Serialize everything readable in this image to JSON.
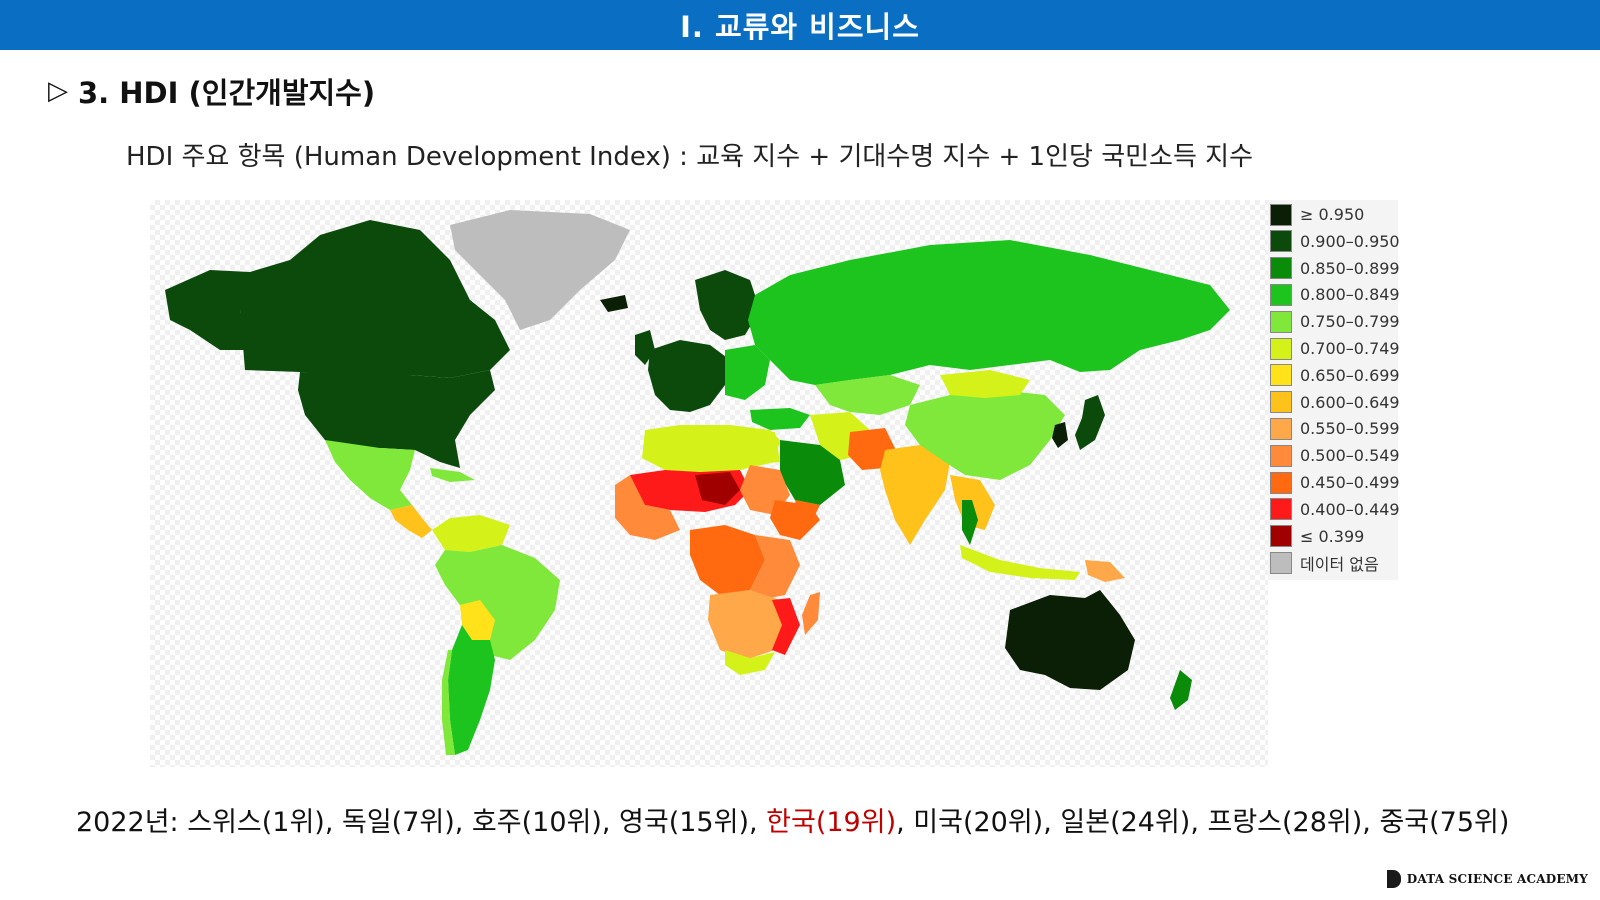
{
  "header": {
    "title": "I. 교류와 비즈니스"
  },
  "section": {
    "marker": "▷",
    "title": "3. HDI (인간개발지수)"
  },
  "subtitle": "HDI 주요 항목 (Human Development Index) : 교육 지수 + 기대수명 지수 + 1인당 국민소득 지수",
  "legend": [
    {
      "label": "≥ 0.950",
      "color": "#0a1f05"
    },
    {
      "label": "0.900–0.950",
      "color": "#0c4a0c"
    },
    {
      "label": "0.850–0.899",
      "color": "#0a8c0a"
    },
    {
      "label": "0.800–0.849",
      "color": "#1ec41e"
    },
    {
      "label": "0.750–0.799",
      "color": "#7fe83a"
    },
    {
      "label": "0.700–0.749",
      "color": "#d4f21a"
    },
    {
      "label": "0.650–0.699",
      "color": "#ffe21a"
    },
    {
      "label": "0.600–0.649",
      "color": "#ffc21a"
    },
    {
      "label": "0.550–0.599",
      "color": "#ffa84a"
    },
    {
      "label": "0.500–0.549",
      "color": "#ff8a3a"
    },
    {
      "label": "0.450–0.499",
      "color": "#ff6a10"
    },
    {
      "label": "0.400–0.449",
      "color": "#ff1a1a"
    },
    {
      "label": "≤ 0.399",
      "color": "#a00000"
    },
    {
      "label": "데이터 없음",
      "color": "#bdbdbd"
    }
  ],
  "footer": {
    "prefix": "2022년: 스위스(1위), 독일(7위), 호주(10위), 영국(15위), ",
    "highlight": "한국(19위)",
    "suffix": ", 미국(20위), 일본(24위), 프랑스(28위), 중국(75위)"
  },
  "brand": {
    "name": "DATA SCIENCE ACADEMY"
  }
}
